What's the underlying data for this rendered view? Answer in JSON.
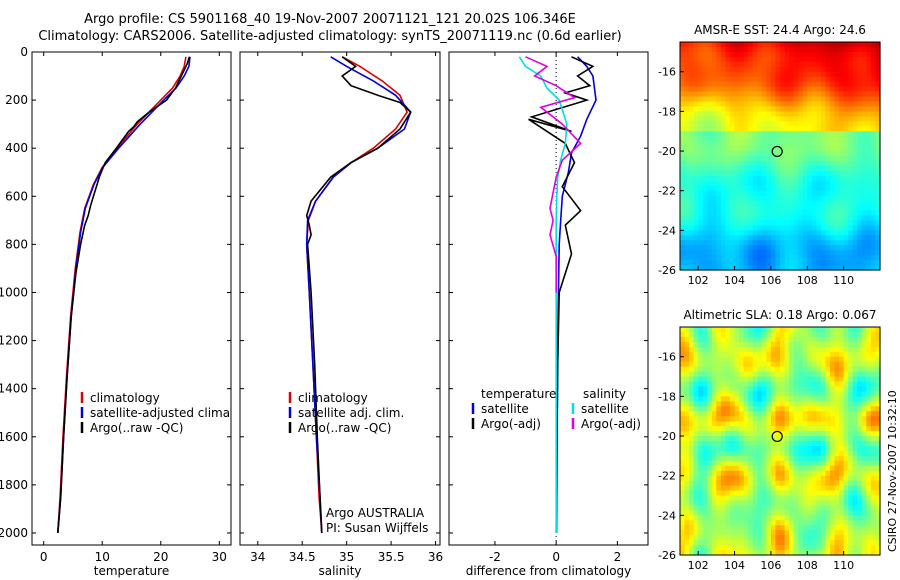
{
  "header": {
    "title_line1": "Argo profile: CS 5901168_40 19-Nov-2007 20071121_121 20.02S 106.346E",
    "title_line2": "Climatology: CARS2006. Satellite-adjusted climatology: synTS_20071119.nc (0.6d earlier)"
  },
  "footer": {
    "credit": "CSIRO 27-Nov-2007 10:32:10"
  },
  "colors": {
    "climatology": "#e00000",
    "satellite": "#0000e0",
    "argo": "#000000",
    "sat_salinity": "#00e0e0",
    "argo_salinity": "#e000e0"
  },
  "chart_data": [
    {
      "type": "line",
      "id": "temperature",
      "xlabel": "temperature",
      "xlim": [
        -2,
        32
      ],
      "ylim": [
        2050,
        0
      ],
      "yticks": [
        0,
        200,
        400,
        600,
        800,
        1000,
        1200,
        1400,
        1600,
        1800,
        2000
      ],
      "xticks": [
        0,
        10,
        20,
        30
      ],
      "xticklabels": [
        "0",
        "10",
        "20",
        "30"
      ],
      "legend": [
        "climatology",
        "satellite-adjusted climatology",
        "Argo(..raw -QC)"
      ],
      "series": [
        {
          "name": "climatology",
          "color": "climatology",
          "x": [
            24.3,
            24,
            23.3,
            22,
            20,
            16,
            12.5,
            10,
            8.5,
            7,
            6.2,
            5.4,
            4.6,
            3.9,
            3.3,
            2.8,
            2.4
          ],
          "y": [
            20,
            60,
            100,
            150,
            200,
            300,
            400,
            480,
            550,
            650,
            750,
            900,
            1100,
            1350,
            1600,
            1850,
            2000
          ]
        },
        {
          "name": "satellite-adjusted climatology",
          "color": "satellite",
          "x": [
            25,
            24.8,
            24,
            22.6,
            20.5,
            16.5,
            12.8,
            10.1,
            8.6,
            7.1,
            6.3,
            5.5,
            4.7,
            4,
            3.4,
            2.9,
            2.4
          ],
          "y": [
            20,
            60,
            100,
            150,
            200,
            300,
            400,
            480,
            550,
            650,
            750,
            900,
            1100,
            1350,
            1600,
            1850,
            2000
          ]
        },
        {
          "name": "Argo(..raw -QC)",
          "color": "argo",
          "x": [
            24.9,
            24.5,
            23.5,
            22.5,
            21,
            18,
            16,
            15.4,
            14.5,
            12.4,
            10.5,
            9.5,
            8,
            7.6,
            7,
            6.3,
            5.5,
            4.7,
            4,
            3.4,
            2.9,
            2.4
          ],
          "y": [
            20,
            50,
            100,
            150,
            200,
            250,
            290,
            310,
            330,
            400,
            460,
            520,
            640,
            680,
            720,
            800,
            920,
            1100,
            1350,
            1600,
            1850,
            2000
          ]
        }
      ],
      "annotations": []
    },
    {
      "type": "line",
      "id": "salinity",
      "xlabel": "salinity",
      "xlim": [
        33.8,
        36.05
      ],
      "ylim": [
        2050,
        0
      ],
      "xticks": [
        34,
        34.5,
        35,
        35.5,
        36
      ],
      "xticklabels": [
        "34",
        "34.5",
        "35",
        "35.5",
        "36"
      ],
      "legend": [
        "climatology",
        "satellite adj. clim.",
        "Argo(..raw -QC)"
      ],
      "series": [
        {
          "name": "climatology",
          "color": "climatology",
          "x": [
            34.95,
            35.15,
            35.4,
            35.6,
            35.68,
            35.55,
            35.3,
            35.05,
            34.85,
            34.65,
            34.57,
            34.55,
            34.58,
            34.62,
            34.66,
            34.69,
            34.72
          ],
          "y": [
            20,
            60,
            120,
            180,
            250,
            320,
            400,
            460,
            520,
            620,
            700,
            800,
            1000,
            1300,
            1600,
            1850,
            2000
          ]
        },
        {
          "name": "satellite adj. clim.",
          "color": "satellite",
          "x": [
            34.82,
            35.0,
            35.3,
            35.55,
            35.72,
            35.65,
            35.35,
            35.05,
            34.85,
            34.65,
            34.56,
            34.55,
            34.58,
            34.62,
            34.66,
            34.7,
            34.72
          ],
          "y": [
            20,
            60,
            120,
            180,
            250,
            320,
            400,
            460,
            520,
            620,
            700,
            800,
            1000,
            1300,
            1600,
            1850,
            2000
          ]
        },
        {
          "name": "Argo(..raw -QC)",
          "color": "argo",
          "x": [
            34.95,
            35.1,
            34.95,
            35.05,
            35.35,
            35.6,
            35.72,
            35.6,
            35.35,
            35.05,
            34.82,
            34.6,
            34.55,
            34.58,
            34.6,
            34.56,
            34.6,
            34.64,
            34.67,
            34.7,
            34.72
          ],
          "y": [
            20,
            60,
            100,
            140,
            180,
            210,
            250,
            320,
            400,
            460,
            520,
            620,
            680,
            720,
            760,
            800,
            1000,
            1300,
            1600,
            1850,
            2000
          ]
        }
      ],
      "annotations": [
        "Argo AUSTRALIA",
        "PI: Susan Wijffels"
      ]
    },
    {
      "type": "line",
      "id": "difference",
      "xlabel": "difference from climatology",
      "xlim": [
        -3.5,
        3.0
      ],
      "ylim": [
        2050,
        0
      ],
      "xticks": [
        -2,
        0,
        2
      ],
      "xticklabels": [
        "-2",
        "0",
        "2"
      ],
      "zero_line": 0,
      "legend_titles": [
        "temperature",
        "salinity"
      ],
      "legend": [
        "satellite",
        "Argo(-adj)",
        "satellite",
        "Argo(-adj)"
      ],
      "series": [
        {
          "name": "temperature satellite",
          "color": "satellite",
          "x": [
            0.7,
            1.0,
            1.2,
            1.3,
            1.0,
            0.8,
            0.5,
            0.4,
            0.2,
            0.15,
            0.1,
            0.05,
            0.03,
            0.01
          ],
          "y": [
            20,
            60,
            100,
            200,
            280,
            350,
            420,
            500,
            600,
            700,
            800,
            1200,
            1600,
            2000
          ]
        },
        {
          "name": "temperature Argo(-adj)",
          "color": "argo",
          "x": [
            0.5,
            1.2,
            0.7,
            1.1,
            0.3,
            1.0,
            -0.8,
            0.5,
            -0.9,
            0.3,
            0.6,
            0.2,
            0.5,
            0.8,
            0.3,
            0.5,
            0.1,
            0.05,
            0.02,
            0.0
          ],
          "y": [
            20,
            60,
            100,
            140,
            170,
            200,
            270,
            330,
            280,
            380,
            460,
            560,
            610,
            660,
            720,
            840,
            1000,
            1300,
            1700,
            2000
          ]
        },
        {
          "name": "salinity satellite",
          "color": "sat_salinity",
          "x": [
            -1.2,
            -1.0,
            -0.5,
            -0.3,
            0.1,
            0.35,
            0.3,
            0.15,
            0.05,
            0.02,
            0.0,
            0.0,
            0.0,
            0.0
          ],
          "y": [
            20,
            60,
            100,
            150,
            200,
            300,
            380,
            450,
            520,
            600,
            700,
            1000,
            1500,
            2000
          ]
        },
        {
          "name": "salinity Argo(-adj)",
          "color": "argo_salinity",
          "x": [
            -1.0,
            -0.3,
            -0.7,
            0.0,
            0.6,
            -0.5,
            0.2,
            0.8,
            0.2,
            0.0,
            -0.2,
            -0.1,
            -0.2,
            0.0,
            0.0
          ],
          "y": [
            20,
            60,
            100,
            140,
            190,
            230,
            300,
            380,
            450,
            520,
            650,
            700,
            760,
            850,
            1000
          ]
        }
      ],
      "annotations": []
    },
    {
      "type": "heatmap",
      "id": "sst_map",
      "title": "AMSR-E SST: 24.4 Argo: 24.6",
      "xlim": [
        101,
        112
      ],
      "ylim": [
        -26,
        -14.5
      ],
      "xticks": [
        102,
        104,
        106,
        108,
        110
      ],
      "xticklabels": [
        "102",
        "104",
        "106",
        "108",
        "110"
      ],
      "yticks": [
        -16,
        -18,
        -20,
        -22,
        -24,
        -26
      ],
      "yticklabels": [
        "-16",
        "-18",
        "-20",
        "-22",
        "-24",
        "-26"
      ],
      "float_position": {
        "lon": 106.346,
        "lat": -20.02
      },
      "field_range": [
        22.5,
        27
      ],
      "colormap": "jet"
    },
    {
      "type": "heatmap",
      "id": "sla_map",
      "title": "Altimetric SLA: 0.18 Argo: 0.067",
      "xlim": [
        101,
        112
      ],
      "ylim": [
        -26,
        -14.5
      ],
      "xticks": [
        102,
        104,
        106,
        108,
        110
      ],
      "xticklabels": [
        "102",
        "104",
        "106",
        "108",
        "110"
      ],
      "yticks": [
        -16,
        -18,
        -20,
        -22,
        -24,
        -26
      ],
      "yticklabels": [
        "-16",
        "-18",
        "-20",
        "-22",
        "-24",
        "-26"
      ],
      "float_position": {
        "lon": 106.346,
        "lat": -20.02
      },
      "colormap": "jet"
    }
  ]
}
